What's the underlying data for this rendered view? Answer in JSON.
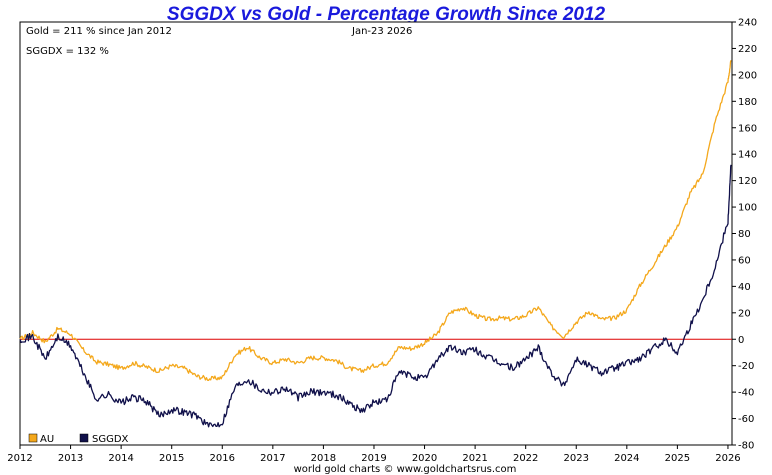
{
  "chart_data": {
    "type": "line",
    "title": "SGGDX vs Gold - Percentage Growth Since 2012",
    "annotations": {
      "gold_growth": "Gold = 211 % since Jan 2012",
      "date": "Jan-23  2026",
      "sggdx_growth": "SGGDX = 132 %"
    },
    "credit": "world gold charts © www.goldchartsrus.com",
    "xlabel": "",
    "ylabel": "",
    "xlim": [
      2012.0,
      2026.08
    ],
    "ylim": [
      -80,
      240
    ],
    "y_ticks": [
      "-80",
      "-60",
      "-40",
      "-20",
      "0",
      "20",
      "40",
      "60",
      "80",
      "100",
      "120",
      "140",
      "160",
      "180",
      "200",
      "220",
      "240"
    ],
    "x_ticks": [
      "2012",
      "2013",
      "2014",
      "2015",
      "2016",
      "2017",
      "2018",
      "2019",
      "2020",
      "2021",
      "2022",
      "2023",
      "2024",
      "2025",
      "2026"
    ],
    "legend": [
      "AU",
      "SGGDX"
    ],
    "legend_position": "bottom-left",
    "grid": false,
    "reference_line": 0,
    "colors": {
      "AU": "#f4a81c",
      "SGGDX": "#10104a",
      "zero_line": "#dd0000",
      "title": "#1a1adc"
    },
    "x": [
      2012.0,
      2012.25,
      2012.5,
      2012.75,
      2013.0,
      2013.25,
      2013.5,
      2013.75,
      2014.0,
      2014.25,
      2014.5,
      2014.75,
      2015.0,
      2015.25,
      2015.5,
      2015.75,
      2016.0,
      2016.25,
      2016.5,
      2016.75,
      2017.0,
      2017.25,
      2017.5,
      2017.75,
      2018.0,
      2018.25,
      2018.5,
      2018.75,
      2019.0,
      2019.25,
      2019.5,
      2019.75,
      2020.0,
      2020.25,
      2020.5,
      2020.75,
      2021.0,
      2021.25,
      2021.5,
      2021.75,
      2022.0,
      2022.25,
      2022.5,
      2022.75,
      2023.0,
      2023.25,
      2023.5,
      2023.75,
      2024.0,
      2024.25,
      2024.5,
      2024.75,
      2025.0,
      2025.25,
      2025.5,
      2025.75,
      2026.0,
      2026.06
    ],
    "series": [
      {
        "name": "AU",
        "values": [
          0,
          5,
          -2,
          8,
          4,
          -8,
          -17,
          -19,
          -22,
          -18,
          -21,
          -24,
          -20,
          -22,
          -28,
          -30,
          -29,
          -12,
          -6,
          -14,
          -18,
          -15,
          -18,
          -14,
          -14,
          -16,
          -22,
          -24,
          -20,
          -18,
          -6,
          -7,
          -3,
          4,
          20,
          24,
          18,
          15,
          16,
          15,
          18,
          24,
          10,
          2,
          13,
          21,
          15,
          16,
          22,
          40,
          55,
          70,
          85,
          110,
          125,
          165,
          195,
          211
        ]
      },
      {
        "name": "SGGDX",
        "values": [
          0,
          2,
          -15,
          2,
          -5,
          -25,
          -45,
          -42,
          -48,
          -44,
          -47,
          -58,
          -53,
          -55,
          -58,
          -66,
          -63,
          -36,
          -30,
          -38,
          -40,
          -37,
          -44,
          -40,
          -40,
          -42,
          -48,
          -54,
          -48,
          -46,
          -25,
          -28,
          -30,
          -15,
          -6,
          -10,
          -8,
          -14,
          -18,
          -22,
          -15,
          -6,
          -25,
          -35,
          -15,
          -20,
          -25,
          -22,
          -18,
          -15,
          -8,
          0,
          -10,
          10,
          30,
          55,
          90,
          132
        ]
      }
    ]
  }
}
